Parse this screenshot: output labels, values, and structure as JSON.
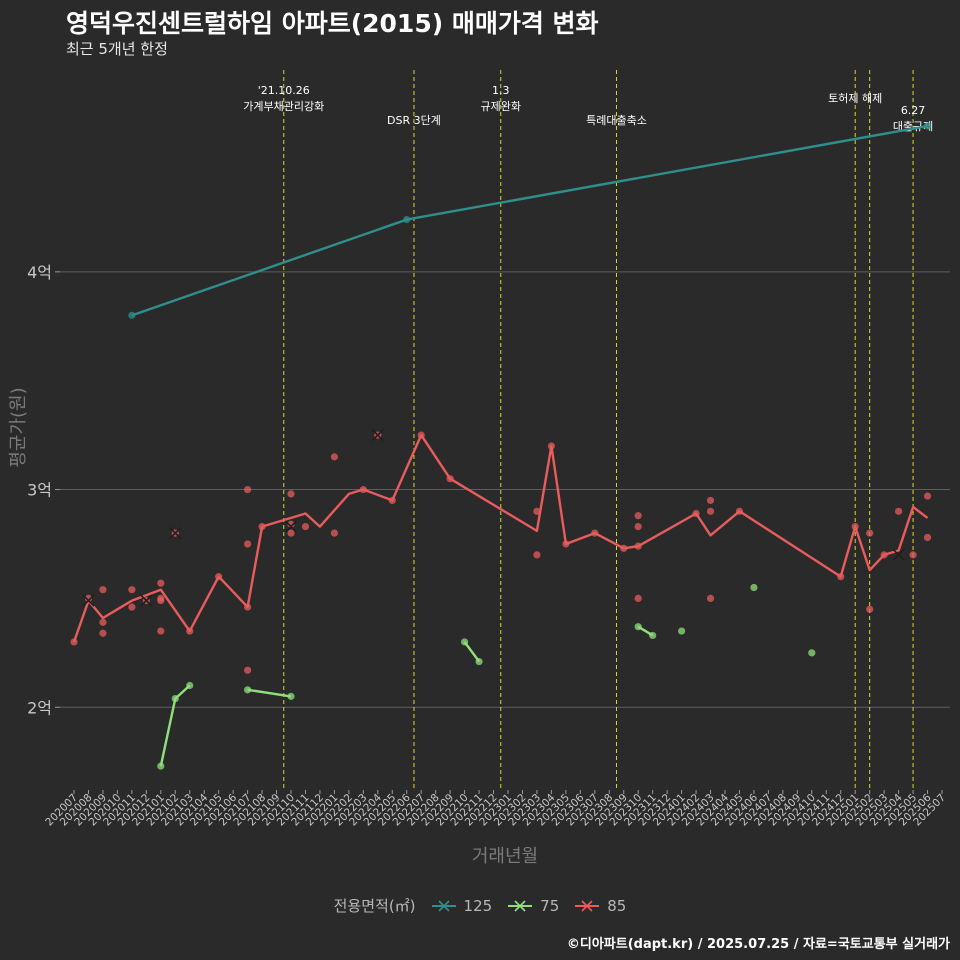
{
  "title": "영덕우진센트럴하임 아파트(2015) 매매가격 변화",
  "subtitle": "최근 5개년 한정",
  "caption": "©디아파트(dapt.kr) / 2025.07.25 / 자료=국토교통부 실거래가",
  "chart_data": {
    "type": "line",
    "xlabel": "거래년월",
    "ylabel": "평균가(원)",
    "ylim": [
      1.62,
      4.95
    ],
    "y_ticks": [
      {
        "v": 2,
        "label": "2억"
      },
      {
        "v": 3,
        "label": "3억"
      },
      {
        "v": 4,
        "label": "4억"
      }
    ],
    "categories": [
      "202007",
      "202008",
      "202009",
      "202010",
      "202011",
      "202012",
      "202101",
      "202102",
      "202103",
      "202104",
      "202105",
      "202106",
      "202107",
      "202108",
      "202109",
      "202110",
      "202111",
      "202112",
      "202201",
      "202202",
      "202203",
      "202204",
      "202205",
      "202206",
      "202207",
      "202208",
      "202209",
      "202210",
      "202211",
      "202212",
      "202301",
      "202302",
      "202303",
      "202304",
      "202305",
      "202306",
      "202307",
      "202308",
      "202309",
      "202310",
      "202311",
      "202312",
      "202401",
      "202402",
      "202403",
      "202404",
      "202405",
      "202406",
      "202407",
      "202408",
      "202409",
      "202410",
      "202411",
      "202412",
      "202501",
      "202502",
      "202503",
      "202504",
      "202505",
      "202506",
      "202507"
    ],
    "legend_title": "전용면적(㎡)",
    "series": [
      {
        "name": "125",
        "color": "#2e8f8c",
        "line": [
          [
            4,
            3.8
          ],
          [
            23,
            4.24
          ],
          [
            59,
            4.67
          ]
        ],
        "points": [
          [
            4,
            3.8
          ],
          [
            23,
            4.24
          ],
          [
            59,
            4.67
          ]
        ],
        "crosses": []
      },
      {
        "name": "75",
        "color": "#8fe07a",
        "line_segments": [
          [
            [
              6,
              1.73
            ],
            [
              7,
              2.04
            ],
            [
              8,
              2.1
            ]
          ],
          [
            [
              12,
              2.08
            ],
            [
              15,
              2.05
            ]
          ],
          [
            [
              27,
              2.3
            ],
            [
              28,
              2.21
            ]
          ],
          [
            [
              39,
              2.37
            ],
            [
              40,
              2.33
            ]
          ]
        ],
        "points": [
          [
            6,
            1.73
          ],
          [
            7,
            2.04
          ],
          [
            8,
            2.1
          ],
          [
            12,
            2.08
          ],
          [
            15,
            2.05
          ],
          [
            27,
            2.3
          ],
          [
            28,
            2.21
          ],
          [
            39,
            2.37
          ],
          [
            40,
            2.33
          ],
          [
            42,
            2.35
          ],
          [
            47,
            2.55
          ],
          [
            51,
            2.25
          ]
        ],
        "crosses": []
      },
      {
        "name": "85",
        "color": "#e85c5c",
        "line": [
          [
            0,
            2.3
          ],
          [
            1,
            2.49
          ],
          [
            2,
            2.41
          ],
          [
            4,
            2.49
          ],
          [
            6,
            2.54
          ],
          [
            8,
            2.35
          ],
          [
            10,
            2.6
          ],
          [
            12,
            2.46
          ],
          [
            13,
            2.83
          ],
          [
            16,
            2.89
          ],
          [
            17,
            2.83
          ],
          [
            19,
            2.98
          ],
          [
            20,
            3.0
          ],
          [
            22,
            2.95
          ],
          [
            24,
            3.25
          ],
          [
            26,
            3.05
          ],
          [
            32,
            2.81
          ],
          [
            33,
            3.2
          ],
          [
            34,
            2.75
          ],
          [
            36,
            2.8
          ],
          [
            38,
            2.73
          ],
          [
            39,
            2.74
          ],
          [
            43,
            2.89
          ],
          [
            44,
            2.79
          ],
          [
            46,
            2.9
          ],
          [
            53,
            2.6
          ],
          [
            54,
            2.83
          ],
          [
            55,
            2.63
          ],
          [
            56,
            2.7
          ],
          [
            57,
            2.72
          ],
          [
            58,
            2.92
          ],
          [
            59,
            2.87
          ]
        ],
        "points": [
          [
            0,
            2.3
          ],
          [
            1,
            2.5
          ],
          [
            2,
            2.54
          ],
          [
            2,
            2.39
          ],
          [
            2,
            2.34
          ],
          [
            4,
            2.54
          ],
          [
            4,
            2.46
          ],
          [
            5,
            2.49
          ],
          [
            6,
            2.49
          ],
          [
            6,
            2.57
          ],
          [
            6,
            2.5
          ],
          [
            6,
            2.35
          ],
          [
            7,
            2.8
          ],
          [
            8,
            2.35
          ],
          [
            10,
            2.6
          ],
          [
            12,
            2.46
          ],
          [
            12,
            3.0
          ],
          [
            12,
            2.75
          ],
          [
            12,
            2.17
          ],
          [
            13,
            2.83
          ],
          [
            15,
            2.8
          ],
          [
            15,
            2.98
          ],
          [
            15,
            2.84
          ],
          [
            16,
            2.83
          ],
          [
            18,
            2.8
          ],
          [
            18,
            3.15
          ],
          [
            20,
            3.0
          ],
          [
            21,
            3.25
          ],
          [
            22,
            2.95
          ],
          [
            24,
            3.25
          ],
          [
            26,
            3.05
          ],
          [
            33,
            3.2
          ],
          [
            32,
            2.9
          ],
          [
            32,
            2.7
          ],
          [
            34,
            2.75
          ],
          [
            36,
            2.8
          ],
          [
            38,
            2.73
          ],
          [
            39,
            2.74
          ],
          [
            39,
            2.88
          ],
          [
            39,
            2.83
          ],
          [
            39,
            2.5
          ],
          [
            43,
            2.89
          ],
          [
            44,
            2.95
          ],
          [
            44,
            2.9
          ],
          [
            44,
            2.5
          ],
          [
            46,
            2.9
          ],
          [
            53,
            2.6
          ],
          [
            54,
            2.83
          ],
          [
            55,
            2.8
          ],
          [
            55,
            2.45
          ],
          [
            56,
            2.7
          ],
          [
            57,
            2.9
          ],
          [
            58,
            2.7
          ],
          [
            59,
            2.97
          ],
          [
            59,
            2.78
          ]
        ],
        "crosses": [
          [
            1,
            2.49
          ],
          [
            5,
            2.49
          ],
          [
            7,
            2.8
          ],
          [
            15,
            2.83
          ],
          [
            21,
            3.25
          ],
          [
            57,
            2.7
          ]
        ]
      }
    ],
    "events": [
      {
        "x": 14.5,
        "line1": "'21.10.26",
        "line2": "가계부채관리강화",
        "tier": "high"
      },
      {
        "x": 23.5,
        "line1": "",
        "line2": "DSR 3단계",
        "tier": "low"
      },
      {
        "x": 29.5,
        "line1": "1.3",
        "line2": "규제완화",
        "tier": "high"
      },
      {
        "x": 37.5,
        "line1": "",
        "line2": "특례대출축소",
        "tier": "low"
      },
      {
        "x": 54.0,
        "line1": "",
        "line2": "토허제 해제",
        "tier": "top"
      },
      {
        "x": 55.0,
        "line1": "",
        "line2": "",
        "tier": "none"
      },
      {
        "x": 58.0,
        "line1": "6.27",
        "line2": "대출규제",
        "tier": "mid"
      }
    ]
  }
}
